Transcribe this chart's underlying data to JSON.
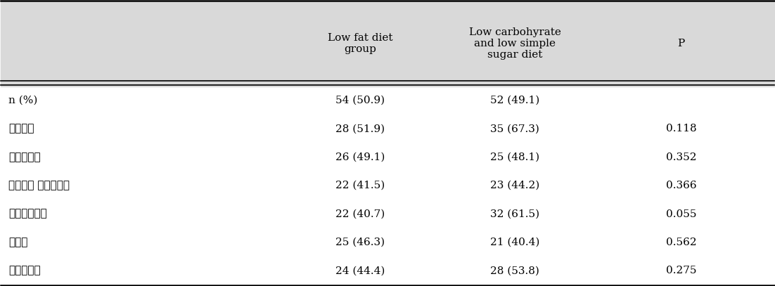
{
  "header_row": [
    "",
    "Low fat diet\ngroup",
    "Low carbohyrate\nand low simple\nsugar diet",
    "P"
  ],
  "rows": [
    [
      "n (%)",
      "54 (50.9)",
      "52 (49.1)",
      ""
    ],
    [
      "복부비만",
      "28 (51.9)",
      "35 (67.3)",
      "0.118"
    ],
    [
      "고중성지방",
      "26 (49.1)",
      "25 (48.1)",
      "0.352"
    ],
    [
      "저고밀도 콜레스테롤",
      "22 (41.5)",
      "23 (44.2)",
      "0.366"
    ],
    [
      "공복혁당이상",
      "22 (40.7)",
      "32 (61.5)",
      "0.055"
    ],
    [
      "고혁압",
      "25 (46.3)",
      "21 (40.4)",
      "0.562"
    ],
    [
      "대사증후군",
      "24 (44.4)",
      "28 (53.8)",
      "0.275"
    ]
  ],
  "header_bg": "#d9d9d9",
  "header_fontsize": 11,
  "body_fontsize": 11,
  "fig_width": 11.02,
  "fig_height": 4.07
}
